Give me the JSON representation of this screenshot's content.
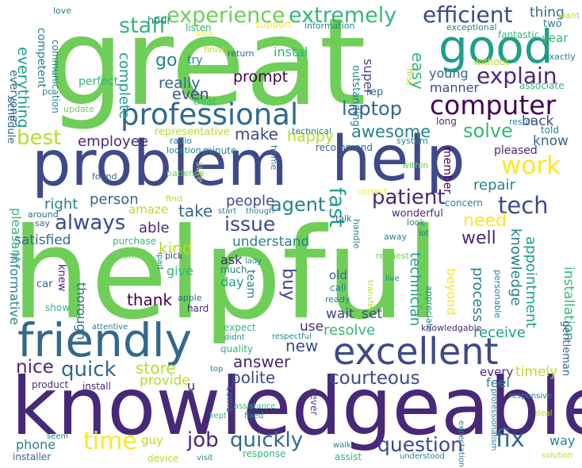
{
  "palette": {
    "background": "#ffffff",
    "colors": [
      "#440154",
      "#482878",
      "#3e4989",
      "#31688e",
      "#26828e",
      "#1f9e89",
      "#35b779",
      "#6ece58",
      "#b5de2b",
      "#fde725"
    ]
  },
  "words": [
    {
      "text": "great",
      "color": "#6ece58"
    },
    {
      "text": "helpful",
      "color": "#6ece58"
    },
    {
      "text": "knowledgeable",
      "color": "#482878"
    },
    {
      "text": "problem",
      "color": "#3e4989"
    },
    {
      "text": "help",
      "color": "#3e4989"
    },
    {
      "text": "friendly",
      "color": "#31688e"
    },
    {
      "text": "excellent",
      "color": "#3e4989"
    },
    {
      "text": "good",
      "color": "#1f9e89"
    },
    {
      "text": "professional",
      "color": "#31688e"
    },
    {
      "text": "computer",
      "color": "#440154"
    },
    {
      "text": "efficient",
      "color": "#3e4989"
    },
    {
      "text": "experience",
      "color": "#6ece58"
    },
    {
      "text": "extremely",
      "color": "#35b779"
    },
    {
      "text": "staff",
      "color": "#35b779"
    },
    {
      "text": "explain",
      "color": "#482878"
    },
    {
      "text": "laptop",
      "color": "#31688e"
    },
    {
      "text": "work",
      "color": "#fde725"
    },
    {
      "text": "tech",
      "color": "#3e4989"
    },
    {
      "text": "patient",
      "color": "#482878"
    },
    {
      "text": "solve",
      "color": "#35b779"
    },
    {
      "text": "awesome",
      "color": "#26828e"
    },
    {
      "text": "best",
      "color": "#b5de2b"
    },
    {
      "text": "issue",
      "color": "#3e4989"
    },
    {
      "text": "always",
      "color": "#3e4989"
    },
    {
      "text": "fast",
      "color": "#1f9e89"
    },
    {
      "text": "agent",
      "color": "#26828e"
    },
    {
      "text": "quick",
      "color": "#31688e"
    },
    {
      "text": "time",
      "color": "#fde725"
    },
    {
      "text": "job",
      "color": "#482878"
    },
    {
      "text": "quickly",
      "color": "#31688e"
    },
    {
      "text": "fix",
      "color": "#31688e"
    },
    {
      "text": "question",
      "color": "#3e4989"
    },
    {
      "text": "courteous",
      "color": "#3e4989"
    },
    {
      "text": "polite",
      "color": "#3e4989"
    },
    {
      "text": "answer",
      "color": "#482878"
    },
    {
      "text": "nice",
      "color": "#482878"
    },
    {
      "text": "new",
      "color": "#3e4989"
    },
    {
      "text": "store",
      "color": "#b5de2b"
    },
    {
      "text": "take",
      "color": "#31688e"
    },
    {
      "text": "make",
      "color": "#3e4989"
    },
    {
      "text": "need",
      "color": "#fde725"
    },
    {
      "text": "well",
      "color": "#482878"
    },
    {
      "text": "kind",
      "color": "#b5de2b"
    },
    {
      "text": "thank",
      "color": "#440154"
    },
    {
      "text": "everything",
      "color": "#1f9e89"
    },
    {
      "text": "go",
      "color": "#26828e"
    },
    {
      "text": "easy",
      "color": "#35b779"
    },
    {
      "text": "prompt",
      "color": "#440154"
    },
    {
      "text": "really",
      "color": "#31688e"
    },
    {
      "text": "even",
      "color": "#3e4989"
    },
    {
      "text": "complete",
      "color": "#1f9e89"
    },
    {
      "text": "happy",
      "color": "#b5de2b"
    },
    {
      "text": "employee",
      "color": "#482878"
    },
    {
      "text": "person",
      "color": "#31688e"
    },
    {
      "text": "people",
      "color": "#3e4989"
    },
    {
      "text": "repair",
      "color": "#26828e"
    },
    {
      "text": "understand",
      "color": "#26828e"
    },
    {
      "text": "able",
      "color": "#482878"
    },
    {
      "text": "right",
      "color": "#26828e"
    },
    {
      "text": "satisfied",
      "color": "#31688e"
    },
    {
      "text": "appointment",
      "color": "#1f9e89"
    },
    {
      "text": "technician",
      "color": "#1f9e89"
    },
    {
      "text": "resolve",
      "color": "#35b779"
    },
    {
      "text": "receive",
      "color": "#1f9e89"
    },
    {
      "text": "timely",
      "color": "#b5de2b"
    },
    {
      "text": "provide",
      "color": "#b5de2b"
    },
    {
      "text": "back",
      "color": "#3e4989"
    },
    {
      "text": "know",
      "color": "#31688e"
    },
    {
      "text": "thing",
      "color": "#31688e"
    },
    {
      "text": "year",
      "color": "#35b779"
    },
    {
      "text": "young",
      "color": "#31688e"
    },
    {
      "text": "manner",
      "color": "#3e4989"
    },
    {
      "text": "instal",
      "color": "#35b779"
    },
    {
      "text": "super",
      "color": "#3e4989"
    },
    {
      "text": "ask",
      "color": "#482878"
    },
    {
      "text": "give",
      "color": "#35b779"
    },
    {
      "text": "day",
      "color": "#1f9e89"
    },
    {
      "text": "buy",
      "color": "#3e4989"
    },
    {
      "text": "team",
      "color": "#26828e"
    },
    {
      "text": "old",
      "color": "#31688e"
    },
    {
      "text": "wait",
      "color": "#3e4989"
    },
    {
      "text": "set",
      "color": "#3e4989"
    },
    {
      "text": "use",
      "color": "#482878"
    },
    {
      "text": "process",
      "color": "#26828e"
    },
    {
      "text": "installation",
      "color": "#35b779"
    },
    {
      "text": "knowledge",
      "color": "#26828e"
    },
    {
      "text": "beyond",
      "color": "#fde725"
    },
    {
      "text": "guy",
      "color": "#b5de2b"
    },
    {
      "text": "phone",
      "color": "#26828e"
    },
    {
      "text": "way",
      "color": "#26828e"
    },
    {
      "text": "every",
      "color": "#482878"
    },
    {
      "text": "feel",
      "color": "#26828e"
    },
    {
      "text": "informative",
      "color": "#26828e"
    },
    {
      "text": "pleasant",
      "color": "#35b779"
    },
    {
      "text": "thorough",
      "color": "#31688e"
    },
    {
      "text": "u",
      "color": "#482878"
    },
    {
      "text": "gentleman",
      "color": "#31688e"
    },
    {
      "text": "member",
      "color": "#440154"
    },
    {
      "text": "amaze",
      "color": "#b5de2b"
    },
    {
      "text": "pleased",
      "color": "#482878"
    },
    {
      "text": "schedule",
      "color": "#31688e"
    },
    {
      "text": "everyone",
      "color": "#31688e"
    },
    {
      "text": "competent",
      "color": "#26828e"
    },
    {
      "text": "communication",
      "color": "#26828e"
    },
    {
      "text": "outstanding",
      "color": "#26828e"
    },
    {
      "text": "perfect",
      "color": "#35b779"
    },
    {
      "text": "hour",
      "color": "#26828e"
    },
    {
      "text": "listen",
      "color": "#35b779"
    },
    {
      "text": "finish",
      "color": "#b5de2b"
    },
    {
      "text": "support",
      "color": "#fde725"
    },
    {
      "text": "information",
      "color": "#26828e"
    },
    {
      "text": "exceptional",
      "color": "#26828e"
    },
    {
      "text": "fantastic",
      "color": "#35b779"
    },
    {
      "text": "two",
      "color": "#26828e"
    },
    {
      "text": "exactly",
      "color": "#26828e"
    },
    {
      "text": "associate",
      "color": "#35b779"
    },
    {
      "text": "without",
      "color": "#b5de2b"
    },
    {
      "text": "love",
      "color": "#26828e"
    },
    {
      "text": "want",
      "color": "#b5de2b"
    },
    {
      "text": "data",
      "color": "#fde725"
    },
    {
      "text": "return",
      "color": "#31688e"
    },
    {
      "text": "rep",
      "color": "#31688e"
    },
    {
      "text": "first",
      "color": "#b5de2b"
    },
    {
      "text": "update",
      "color": "#6ece58"
    },
    {
      "text": "try",
      "color": "#26828e"
    },
    {
      "text": "treat",
      "color": "#35b779"
    },
    {
      "text": "pc",
      "color": "#26828e"
    },
    {
      "text": "representative",
      "color": "#b5de2b"
    },
    {
      "text": "radio",
      "color": "#26828e"
    },
    {
      "text": "location",
      "color": "#26828e"
    },
    {
      "text": "minute",
      "color": "#26828e"
    },
    {
      "text": "technical",
      "color": "#26828e"
    },
    {
      "text": "home",
      "color": "#26828e"
    },
    {
      "text": "recommend",
      "color": "#31688e"
    },
    {
      "text": "system",
      "color": "#26828e"
    },
    {
      "text": "long",
      "color": "#482878"
    },
    {
      "text": "result",
      "color": "#26828e"
    },
    {
      "text": "told",
      "color": "#26828e"
    },
    {
      "text": "patience",
      "color": "#6ece58"
    },
    {
      "text": "sure",
      "color": "#b5de2b"
    },
    {
      "text": "found",
      "color": "#31688e"
    },
    {
      "text": "within",
      "color": "#6ece58"
    },
    {
      "text": "correct",
      "color": "#fde725"
    },
    {
      "text": "find",
      "color": "#b5de2b"
    },
    {
      "text": "start",
      "color": "#26828e"
    },
    {
      "text": "though",
      "color": "#26828e"
    },
    {
      "text": "concern",
      "color": "#26828e"
    },
    {
      "text": "wonderful",
      "color": "#482878"
    },
    {
      "text": "around",
      "color": "#31688e"
    },
    {
      "text": "say",
      "color": "#31688e"
    },
    {
      "text": "talk",
      "color": "#31688e"
    },
    {
      "text": "handle",
      "color": "#26828e"
    },
    {
      "text": "look",
      "color": "#26828e"
    },
    {
      "text": "lot",
      "color": "#31688e"
    },
    {
      "text": "away",
      "color": "#26828e"
    },
    {
      "text": "purchase",
      "color": "#35b779"
    },
    {
      "text": "inform",
      "color": "#6ece58"
    },
    {
      "text": "pick",
      "color": "#3e4989"
    },
    {
      "text": "lady",
      "color": "#26828e"
    },
    {
      "text": "much",
      "color": "#26828e"
    },
    {
      "text": "request",
      "color": "#6ece58"
    },
    {
      "text": "live",
      "color": "#26828e"
    },
    {
      "text": "appreciate",
      "color": "#26828e"
    },
    {
      "text": "personable",
      "color": "#26828e"
    },
    {
      "text": "ipad",
      "color": "#26828e"
    },
    {
      "text": "car",
      "color": "#31688e"
    },
    {
      "text": "knew",
      "color": "#482878"
    },
    {
      "text": "apple",
      "color": "#31688e"
    },
    {
      "text": "call",
      "color": "#26828e"
    },
    {
      "text": "ready",
      "color": "#26828e"
    },
    {
      "text": "transfer",
      "color": "#b5de2b"
    },
    {
      "text": "show",
      "color": "#35b779"
    },
    {
      "text": "hard",
      "color": "#482878"
    },
    {
      "text": "attentive",
      "color": "#26828e"
    },
    {
      "text": "expect",
      "color": "#35b779"
    },
    {
      "text": "didnt",
      "color": "#26828e"
    },
    {
      "text": "quality",
      "color": "#35b779"
    },
    {
      "text": "respectful",
      "color": "#26828e"
    },
    {
      "text": "knowledgable",
      "color": "#482878"
    },
    {
      "text": "top",
      "color": "#26828e"
    },
    {
      "text": "product",
      "color": "#482878"
    },
    {
      "text": "install",
      "color": "#482878"
    },
    {
      "text": "come",
      "color": "#31688e"
    },
    {
      "text": "never",
      "color": "#3e4989"
    },
    {
      "text": "assistance",
      "color": "#35b779"
    },
    {
      "text": "responsive",
      "color": "#26828e"
    },
    {
      "text": "deal",
      "color": "#b5de2b"
    },
    {
      "text": "kept",
      "color": "#35b779"
    },
    {
      "text": "fixed",
      "color": "#1f9e89"
    },
    {
      "text": "seem",
      "color": "#26828e"
    },
    {
      "text": "installer",
      "color": "#31688e"
    },
    {
      "text": "device",
      "color": "#b5de2b"
    },
    {
      "text": "visit",
      "color": "#26828e"
    },
    {
      "text": "response",
      "color": "#35b779"
    },
    {
      "text": "walk",
      "color": "#26828e"
    },
    {
      "text": "assist",
      "color": "#35b779"
    },
    {
      "text": "understood",
      "color": "#26828e"
    },
    {
      "text": "expectation",
      "color": "#26828e"
    },
    {
      "text": "professionalism",
      "color": "#26828e"
    },
    {
      "text": "solution",
      "color": "#b5de2b"
    }
  ]
}
